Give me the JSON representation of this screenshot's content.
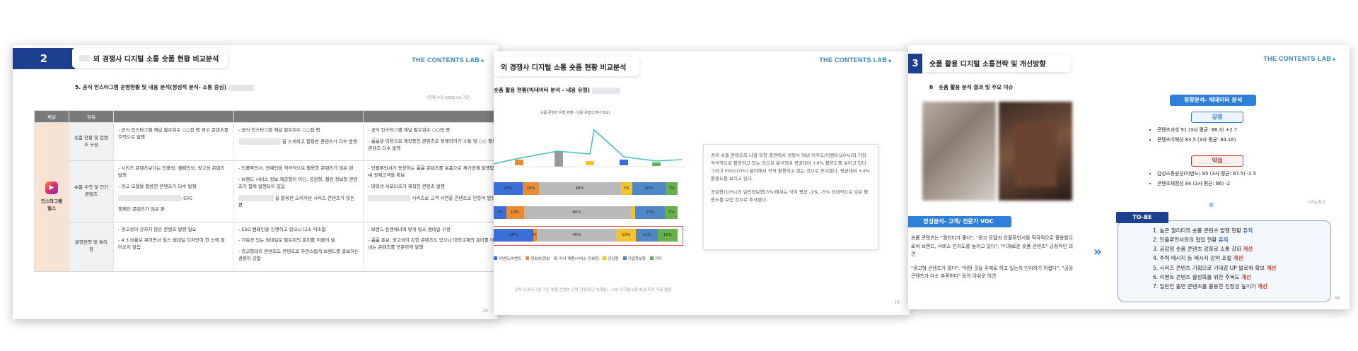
{
  "slide1": {
    "number": "2",
    "title": "외 경쟁사 디지털 소통 숏폼 현황 비교분석",
    "brand": "THE CONTENTS LAB",
    "subtitle": "5. 공식 인스타그램 운영현황 및 내용 분석(정성적 분석- 소통 중심)",
    "note": "*현재 수준 2025.03 기준",
    "headers": [
      "채널",
      "항목"
    ],
    "channel": "인스타그램 릴스",
    "rows": [
      {
        "label": "숏폼 현황 및 콘텐츠 구성",
        "c1": [
          "공식 인스타그램 채널 팔로워수 ○○천 명 광고 콘텐츠를 주력으로 발행"
        ],
        "c2": [
          "공식 인스타그램 채널 팔로워수 ○○천 명",
          "을 소개하고 활용한 콘텐츠가 다수 발행"
        ],
        "c3": [
          "공식 인스타그램 채널 팔로워수 ○○만 명",
          "룸룸을 이용으로 제작중인 콘텐츠로 정제되어가 소통 및 ○○ 활용한 콘텐츠 다수 발행"
        ]
      },
      {
        "label": "숏폼 주력 및 인기콘텐츠",
        "c1": [
          "시리즈 콘텐츠보다는 인플성, 캠페인성, 광고성 콘텐츠 발행",
          "광고 모델을 활용한 콘텐츠가 다수 발행",
          "ESG",
          "캠페인 콘텐츠가 많은 편"
        ],
        "c2": [
          "인플루언서, 연예인을 적극적으로 활용한 콘텐츠가 많은 편",
          "브랜드 서비스 정보 제공형이 아닌, 공감형, 챌린 정보형 콘텐츠가 함께 발행되어 있음",
          "을 활용한 오리지널 시리즈 콘텐츠가 많은 편"
        ],
        "c3": [
          "인플루언서가 등장하는 룸룸 콘텐츠를 숏폼으로 재가공해 발행함으로써 정제고객을 확보",
          "대학생 서포터즈가 제작한 콘텐츠 발행",
          "시리즈로 고객 사연을 콘텐츠로 만들어 발행"
        ]
      },
      {
        "label": "운영전략 및 특이점",
        "c1": [
          "광고성이 강하지 않은 콘텐츠 발행 필요",
          "4:3 비율로 뷰어면서 릴스 썸네일 디자인이 한 눈에 들어오지 않음"
        ],
        "c2": [
          "ESG 캠페인을 진행하고 있으나 다소 약소함",
          "가독성 있는 썸네일로 팔로워의 흥미를 이끌어 냄",
          "광고형태의 콘텐츠도 콘텐츠로 자연스럽게 브랜드를 홍보하는 경향이 강함"
        ],
        "c3": [
          "브랜드 톤앤매너에 맞게 릴스 썸네일 구성",
          "룸룸 홍보, 광고성이 강한 콘텐츠도 있으나 대학교재의 흥미를 이끌어 내는 콘텐츠를 꾸준하게 발행"
        ]
      }
    ],
    "page": "29"
  },
  "slide2": {
    "title": "외 경쟁사 디지털 소통 숏폼 현황 비교분석",
    "brand": "THE CONTENTS LAB",
    "subtitle": "숏폼 활용 현황(빅데이터 분석 - 내용 유형)",
    "chart_title": "숏폼 콘텐츠 유형 현황 - 내용 유형(2개사 비교)",
    "bars": [
      {
        "segments": [
          [
            "17%",
            17,
            "#3a6fd8"
          ],
          [
            "10%",
            10,
            "#e98b34"
          ],
          [
            "48%",
            48,
            "#b9b9b9"
          ],
          [
            "7%",
            7,
            "#f1c232"
          ],
          [
            "20%",
            20,
            "#4f86c6"
          ],
          [
            "7%",
            7,
            "#67b04d"
          ]
        ]
      },
      {
        "segments": [
          [
            "7%",
            7,
            "#3a6fd8"
          ],
          [
            "10%",
            10,
            "#e98b34"
          ],
          [
            "60%",
            60,
            "#b9b9b9"
          ],
          [
            "",
            3,
            "#f1c232"
          ],
          [
            "17%",
            17,
            "#4f86c6"
          ],
          [
            "7%",
            7,
            "#67b04d"
          ]
        ]
      },
      {
        "segments": [
          [
            "20%",
            20,
            "#3a6fd8"
          ],
          [
            "2%",
            2,
            "#e98b34"
          ],
          [
            "40%",
            40,
            "#b9b9b9"
          ],
          [
            "10%",
            10,
            "#f1c232"
          ],
          [
            "11%",
            11,
            "#4f86c6"
          ],
          [
            "10%",
            10,
            "#67b04d"
          ]
        ]
      }
    ],
    "legend": [
      "이벤트/이벤트",
      "정보성/정보",
      "자사 제품/서비스 정보형",
      "공감형",
      "기업정보형",
      "기타"
    ],
    "text1": "경우 숏폼 콘텐츠의 나열 유형 측면에서 경쟁사 대비 이주도/이벤트(20%)와 가장 적극적으로 활용하고 있는 것으로 분석되며 평균대비 +6% 활용도를 보이고 있다. 그리고 ESG(10%) 분야에서 적극 활용하고 있는 것으로 조사됐다. 평균대비 +4% 활용도를 보이고 있다.",
    "text2": "공감형(10%)과 일반정보형(3%)에서는 각각 평균 -1%, -5% 상대적으로 낮은 활용도를 보인 것으로 조사됐다.",
    "footnote": "공식 인스타그램 기준 숏폼 콘텐츠 운영 현황(최근 6개월) - CQI 디지털소통 효과 측정 지표 활용",
    "page": "18"
  },
  "slide3": {
    "number": "3",
    "title": "숏폼 활용 디지털 소통전략 및 개선방향",
    "brand": "THE CONTENTS LAB",
    "subtitle": "숏폼 활용 분석 결과 및 주요 이슈",
    "section6": "6",
    "quant_title": "정량분석- 빅데이터 분석",
    "strength": "강점",
    "s_items": [
      "콘텐츠과성 91 (3사 평균: 88.3) +2.7",
      "콘텐츠이해성 83.5 (3사 평균: 84.16)"
    ],
    "weakness": "약점",
    "w_items": [
      "감성소통원성(이펀드) 85 (3사 평균: 87.5) -2.5",
      "콘텐츠체험성 84 (3사 평균: 86) -2"
    ],
    "voc_title": "정성분석- 고객/ 전문가 VOC",
    "voc1": "숏폼 콘텐츠는 \"퀄리티가 좋다\", \"광고 모델과 인플루언서를 적극적으로 활용함으로써 브랜드, 서비스 인지도를 높이고 있다\", \"다채로운 숏폼 콘텐츠\" 긍정적인 의견",
    "voc2": "\"광고형 콘텐츠가 많다\", \"어떤 것을 주제로 하고 있는지 인지하기 어렵다\", \"공감 콘텐츠가 다소 부족하다\" 등의 아쉬운 의견",
    "tobe_title": "TO-BE",
    "tobe": [
      [
        "1. 높은 퀄리티의 숏폼 콘텐츠 발행 현황 ",
        "유지",
        "blue"
      ],
      [
        "2. 인플루언서와의 협업 현황 ",
        "유지",
        "blue"
      ],
      [
        "3. 공감형 숏폼 콘텐츠 강화로 소통 강화 ",
        "개선",
        "red"
      ],
      [
        "4. 주력 메시지 등 메시지 강약 조절 ",
        "개선",
        "red"
      ],
      [
        "5. 시리즈 콘텐츠 기획으로 기대감 UP 팔로워 확보 ",
        "개선",
        "red"
      ],
      [
        "6. 이벤트 콘텐츠 활성화를 위한 주목도 ",
        "개선",
        "red"
      ],
      [
        "7. 일반인 출연 콘텐츠를 활용한 진정성 높이기 ",
        "개선",
        "red"
      ]
    ],
    "note": "*25p 참고",
    "page": "38"
  }
}
